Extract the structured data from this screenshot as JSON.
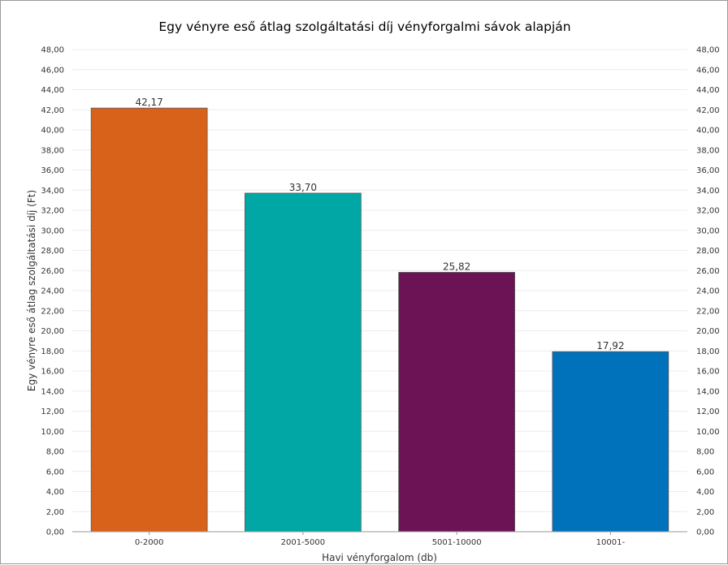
{
  "chart_data": {
    "type": "bar",
    "title": "Egy vényre eső átlag szolgáltatási díj vényforgalmi sávok alapján",
    "xlabel": "Havi vényforgalom (db)",
    "ylabel": "Egy vényre eső átlag szolgáltatási díj (Ft)",
    "categories": [
      "0-2000",
      "2001-5000",
      "5001-10000",
      "10001-"
    ],
    "values": [
      42.17,
      33.7,
      25.82,
      17.92
    ],
    "value_labels": [
      "42,17",
      "33,70",
      "25,82",
      "17,92"
    ],
    "bar_colors": [
      "#d9621b",
      "#00a7a4",
      "#6b1355",
      "#0072bc"
    ],
    "ylim": [
      0,
      48
    ],
    "y_ticks": [
      "0,00",
      "2,00",
      "4,00",
      "6,00",
      "8,00",
      "10,00",
      "12,00",
      "14,00",
      "16,00",
      "18,00",
      "20,00",
      "22,00",
      "24,00",
      "26,00",
      "28,00",
      "30,00",
      "32,00",
      "34,00",
      "36,00",
      "38,00",
      "40,00",
      "42,00",
      "44,00",
      "46,00",
      "48,00"
    ],
    "grid": true,
    "secondary_y_axis": true,
    "legend": "none"
  }
}
